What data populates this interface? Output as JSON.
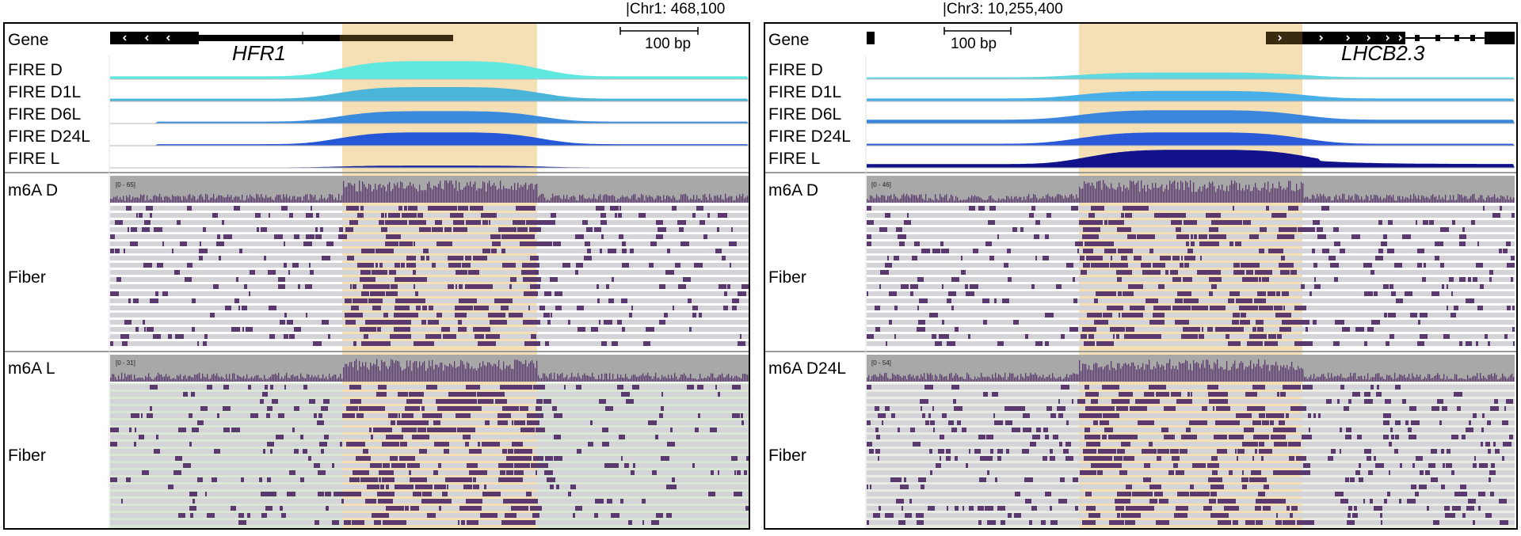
{
  "panels": [
    {
      "id": "left",
      "coordinate_label": "|Chr1: 468,100",
      "scale_label": "100 bp",
      "gene_name": "HFR1",
      "labels": {
        "gene": "Gene",
        "fire": [
          "FIRE D",
          "FIRE D1L",
          "FIRE D6L",
          "FIRE D24L",
          "FIRE L"
        ],
        "m6a_top": "m6A D",
        "fiber_top": "Fiber",
        "m6a_bottom": "m6A L",
        "fiber_bottom": "Fiber"
      },
      "m6a_top_range": "[0 - 65]",
      "m6a_bottom_range": "[0 - 31]",
      "fire_colors": [
        "#5fe8e0",
        "#4ab5d8",
        "#3a8bdc",
        "#2458d6",
        "#1a2a9c"
      ],
      "fire_peak_heights": [
        0.95,
        0.75,
        0.65,
        0.7,
        0.12
      ],
      "fire_tail_levels": [
        0.15,
        0.14,
        0.1,
        0.08,
        0.02
      ],
      "fiber_top_density": 0.35,
      "fiber_bottom_density": 0.3,
      "highlight_density": 0.85,
      "bottom_background_tint": "#d9e6d4"
    },
    {
      "id": "right",
      "coordinate_label": "|Chr3: 10,255,400",
      "scale_label": "100 bp",
      "gene_name": "LHCB2.3",
      "labels": {
        "gene": "Gene",
        "fire": [
          "FIRE D",
          "FIRE D1L",
          "FIRE D6L",
          "FIRE D24L",
          "FIRE L"
        ],
        "m6a_top": "m6A D",
        "fiber_top": "Fiber",
        "m6a_bottom": "m6A D24L",
        "fiber_bottom": "Fiber"
      },
      "m6a_top_range": "[0 - 46]",
      "m6a_bottom_range": "[0 - 54]",
      "fire_colors": [
        "#5fd8e0",
        "#48b0e6",
        "#3a86dc",
        "#2a5ad8",
        "#12128a"
      ],
      "fire_peak_heights": [
        0.35,
        0.55,
        0.7,
        0.7,
        0.95
      ],
      "fire_tail_levels": [
        0.1,
        0.15,
        0.2,
        0.1,
        0.2
      ],
      "fiber_top_density": 0.35,
      "fiber_bottom_density": 0.45,
      "highlight_density": 0.8,
      "bottom_background_tint": "#e8ece4"
    }
  ],
  "colors": {
    "highlight": "#f5dfb5",
    "fiber_row": "#d4d4d8",
    "m6a_mark": "#5a3a6e",
    "coverage_bg": "#a8a8a8",
    "coverage_bar": "#5a3a6e",
    "gene_line": "#000000",
    "utr": "#3a2a10",
    "separator": "#b8b8b8"
  }
}
